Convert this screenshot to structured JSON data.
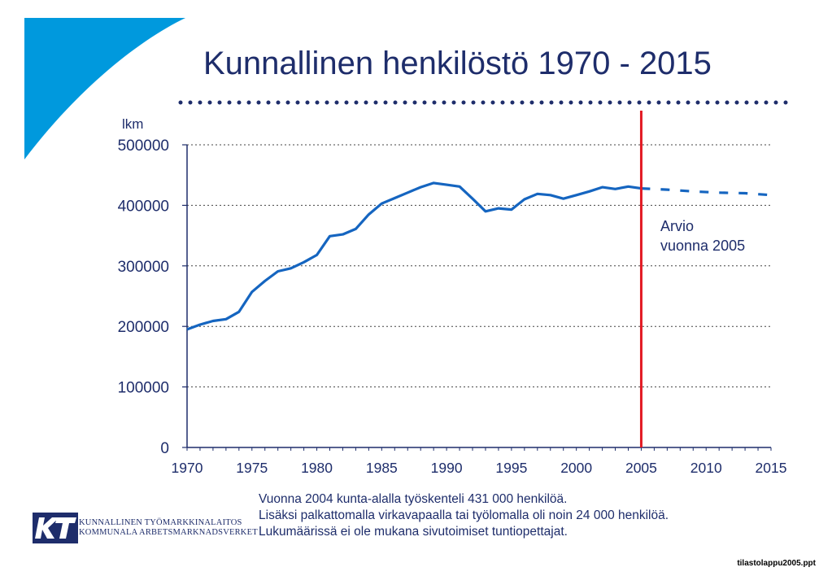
{
  "title": "Kunnallinen henkilöstö 1970 - 2015",
  "colors": {
    "accent_blue": "#1565c0",
    "title_navy": "#1e2d6b",
    "corner_blue": "#0099dd",
    "marker_red": "#e21a23"
  },
  "chart_data": {
    "type": "line",
    "ylabel": "lkm",
    "xlim": [
      1970,
      2015
    ],
    "ylim": [
      0,
      500000
    ],
    "y_ticks": [
      "0",
      "100000",
      "200000",
      "300000",
      "400000",
      "500000"
    ],
    "x_ticks": [
      "1970",
      "1975",
      "1980",
      "1985",
      "1990",
      "1995",
      "2000",
      "2005",
      "2010",
      "2015"
    ],
    "grid": "horizontal-dotted",
    "series": [
      {
        "style": "solid",
        "x": [
          1970,
          1971,
          1972,
          1973,
          1974,
          1975,
          1976,
          1977,
          1978,
          1979,
          1980,
          1981,
          1982,
          1983,
          1984,
          1985,
          1986,
          1987,
          1988,
          1989,
          1990,
          1991,
          1992,
          1993,
          1994,
          1995,
          1996,
          1997,
          1998,
          1999,
          2000,
          2001,
          2002,
          2003,
          2004,
          2005
        ],
        "y": [
          195000,
          203000,
          209000,
          212000,
          224000,
          257000,
          275000,
          291000,
          296000,
          306000,
          318000,
          349000,
          352000,
          361000,
          385000,
          403000,
          412000,
          421000,
          430000,
          437000,
          434000,
          431000,
          411000,
          390000,
          395000,
          393000,
          410000,
          419000,
          417000,
          411000,
          417000,
          423000,
          430000,
          427000,
          431000,
          428000
        ]
      },
      {
        "style": "dashed",
        "x": [
          2005,
          2007,
          2009,
          2011,
          2013,
          2015
        ],
        "y": [
          428000,
          426000,
          423000,
          421000,
          420000,
          417000
        ]
      }
    ],
    "marker": {
      "x": 2005,
      "label_lines": [
        "Arvio",
        "vuonna 2005"
      ]
    }
  },
  "notes": [
    "Vuonna 2004 kunta-alalla työskenteli 431 000 henkilöä.",
    "Lisäksi palkattomalla virkavapaalla tai työlomalla oli noin 24 000 henkilöä.",
    "Lukumäärissä ei ole mukana sivutoimiset tuntiopettajat."
  ],
  "logo": {
    "icon": "kt-logo-icon",
    "lines": [
      "KUNNALLINEN TYÖMARKKINALAITOS",
      "KOMMUNALA ARBETSMARKNADSVERKET"
    ]
  },
  "filename": "tilastolappu2005.ppt"
}
